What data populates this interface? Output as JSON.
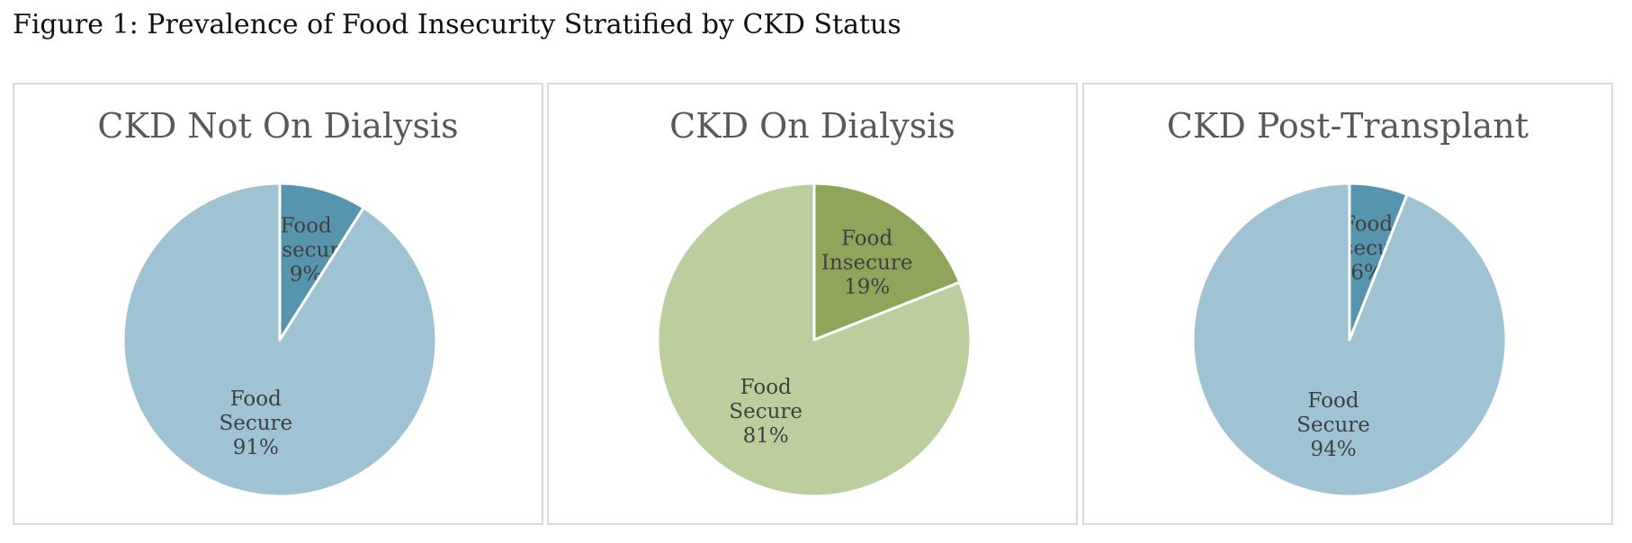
{
  "figure_title": "Figure 1: Prevalence of Food Insecurity Stratified by CKD Status",
  "chart_data": [
    {
      "type": "pie",
      "title": "CKD Not On Dialysis",
      "slices": [
        {
          "label_lines": [
            "Food",
            "Insecure",
            "9%"
          ],
          "value": 9,
          "color": "#5795ae"
        },
        {
          "label_lines": [
            "Food",
            "Secure",
            "91%"
          ],
          "value": 91,
          "color": "#a0c3d4"
        }
      ]
    },
    {
      "type": "pie",
      "title": "CKD On Dialysis",
      "slices": [
        {
          "label_lines": [
            "Food",
            "Insecure",
            "19%"
          ],
          "value": 19,
          "color": "#8ea55a"
        },
        {
          "label_lines": [
            "Food",
            "Secure",
            "81%"
          ],
          "value": 81,
          "color": "#bdce9e"
        }
      ]
    },
    {
      "type": "pie",
      "title": "CKD Post-Transplant",
      "slices": [
        {
          "label_lines": [
            "Food",
            "Insecure",
            "6%"
          ],
          "value": 6,
          "color": "#5795ae"
        },
        {
          "label_lines": [
            "Food",
            "Secure",
            "94%"
          ],
          "value": 94,
          "color": "#a0c3d4"
        }
      ]
    }
  ]
}
